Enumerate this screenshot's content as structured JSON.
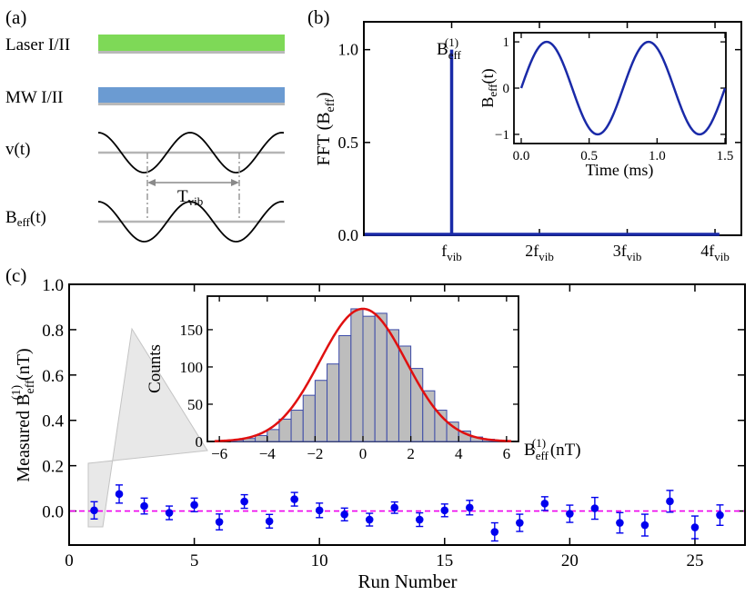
{
  "colors": {
    "laser": "#7ed957",
    "mw": "#6b9bd2",
    "signal": "#000000",
    "trace": "#1a2aa8",
    "points": "#0000ee",
    "zero_line": "#ee00ee",
    "hist_fill": "#bdbdbd",
    "hist_edge": "#3b4aa8",
    "fit": "#e01010"
  },
  "panel_a": {
    "label": "(a)",
    "laser_label": "Laser I/II",
    "mw_label": "MW I/II",
    "v_label": "v(t)",
    "b_label_main": "B",
    "b_label_sub": "eff",
    "b_label_tail": "(t)",
    "period_main": "T",
    "period_sub": "vib"
  },
  "panel_b": {
    "label": "(b)",
    "peak_label_main": "B",
    "peak_label_sub": "eff",
    "peak_label_sup": "(1)",
    "inset_xlabel": "Time (ms)",
    "inset_ylabel_main": "B",
    "inset_ylabel_sub": "eff",
    "inset_ylabel_tail": "(t)"
  },
  "panel_c": {
    "label": "(c)",
    "inset_xlabel_main": "B",
    "inset_xlabel_sub": "eff",
    "inset_xlabel_sup": "(1)",
    "inset_xlabel_tail": " (nT)"
  },
  "chart_data": [
    {
      "id": "b_main",
      "type": "line",
      "title": "",
      "ylabel_main": "FFT (B",
      "ylabel_sub": "eff",
      "ylabel_tail": ")",
      "ylim": [
        0,
        1.15
      ],
      "yticks": [
        0.0,
        0.5,
        1.0
      ],
      "ytick_labels": [
        "0.0",
        "0.5",
        "1.0"
      ],
      "xlim": [
        0,
        4.3
      ],
      "xticks": [
        1,
        2,
        3,
        4
      ],
      "xtick_labels": [
        {
          "coef": "",
          "main": "f",
          "sub": "vib"
        },
        {
          "coef": "2",
          "main": "f",
          "sub": "vib"
        },
        {
          "coef": "3",
          "main": "f",
          "sub": "vib"
        },
        {
          "coef": "4",
          "main": "f",
          "sub": "vib"
        }
      ],
      "peaks": [
        {
          "x": 1,
          "y": 1.0
        }
      ]
    },
    {
      "id": "b_inset",
      "type": "line",
      "xlabel": "Time (ms)",
      "xlim": [
        0,
        1.5
      ],
      "ylim": [
        -1.1,
        1.1
      ],
      "xticks": [
        0.0,
        0.5,
        1.0,
        1.5
      ],
      "xtick_labels": [
        "0.0",
        "0.5",
        "1.0",
        "1.5"
      ],
      "yticks": [
        -1,
        0,
        1
      ],
      "ytick_labels": [
        "−1",
        "0",
        "1"
      ],
      "frequency_khz": 1.333,
      "amplitude": 1.0
    },
    {
      "id": "c_main",
      "type": "scatter",
      "xlabel": "Run Number",
      "ylabel_main": "Measured B",
      "ylabel_sub": "eff",
      "ylabel_sup": "(1)",
      "ylabel_tail": " (nT)",
      "xlim": [
        0,
        27
      ],
      "ylim": [
        -0.15,
        1.0
      ],
      "xticks": [
        0,
        5,
        10,
        15,
        20,
        25
      ],
      "xtick_labels": [
        "0",
        "5",
        "10",
        "15",
        "20",
        "25"
      ],
      "yticks": [
        0.0,
        0.2,
        0.4,
        0.6,
        0.8,
        1.0
      ],
      "ytick_labels": [
        "0.0",
        "0.2",
        "0.4",
        "0.6",
        "0.8",
        "1.0"
      ],
      "reference_line": 0.0,
      "x": [
        1,
        2,
        3,
        4,
        5,
        6,
        7,
        8,
        9,
        10,
        11,
        12,
        13,
        14,
        15,
        16,
        17,
        18,
        19,
        20,
        21,
        22,
        23,
        24,
        25,
        26
      ],
      "y": [
        0.003,
        0.075,
        0.022,
        -0.008,
        0.027,
        -0.048,
        0.042,
        -0.045,
        0.052,
        0.003,
        -0.015,
        -0.038,
        0.015,
        -0.038,
        0.003,
        0.015,
        -0.092,
        -0.052,
        0.033,
        -0.012,
        0.012,
        -0.052,
        -0.062,
        0.043,
        -0.072,
        -0.018
      ],
      "yerr": [
        0.038,
        0.04,
        0.035,
        0.03,
        0.03,
        0.035,
        0.03,
        0.03,
        0.03,
        0.032,
        0.028,
        0.028,
        0.025,
        0.03,
        0.028,
        0.032,
        0.04,
        0.038,
        0.03,
        0.038,
        0.048,
        0.045,
        0.048,
        0.048,
        0.05,
        0.045
      ]
    },
    {
      "id": "c_inset",
      "type": "bar",
      "ylabel": "Counts",
      "xlim": [
        -6.5,
        6.5
      ],
      "ylim": [
        0,
        195
      ],
      "xticks": [
        -6,
        -4,
        -2,
        0,
        2,
        4,
        6
      ],
      "xtick_labels": [
        "−6",
        "−4",
        "−2",
        "0",
        "2",
        "4",
        "6"
      ],
      "yticks": [
        0,
        50,
        100,
        150
      ],
      "ytick_labels": [
        "0",
        "50",
        "100",
        "150"
      ],
      "bin_width": 0.5,
      "bin_starts": [
        -5.5,
        -5.0,
        -4.5,
        -4.0,
        -3.5,
        -3.0,
        -2.5,
        -2.0,
        -1.5,
        -1.0,
        -0.5,
        0.0,
        0.5,
        1.0,
        1.5,
        2.0,
        2.5,
        3.0,
        3.5,
        4.0,
        4.5,
        5.0,
        5.5
      ],
      "counts": [
        2,
        4,
        8,
        16,
        30,
        42,
        62,
        82,
        104,
        142,
        178,
        168,
        172,
        150,
        128,
        98,
        68,
        42,
        26,
        14,
        6,
        3,
        1
      ],
      "fit": {
        "type": "gaussian",
        "amplitude": 178,
        "mean": 0.0,
        "sigma": 1.8
      }
    }
  ]
}
